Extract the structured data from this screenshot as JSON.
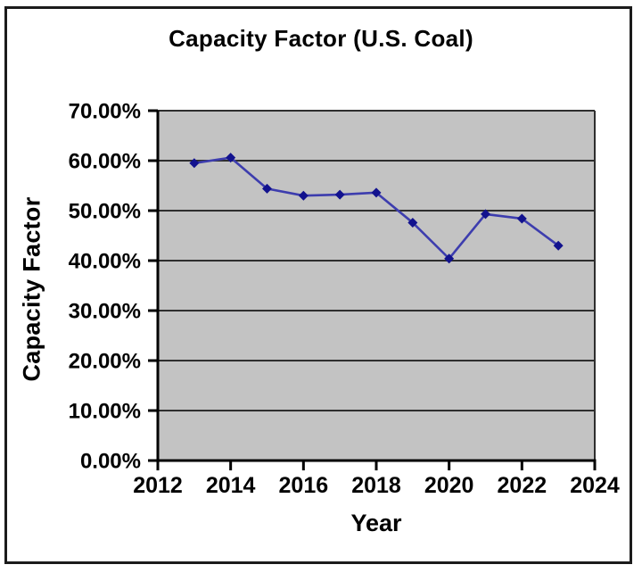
{
  "chart": {
    "title": "Capacity Factor (U.S. Coal)",
    "xlabel": "Year",
    "ylabel": "Capacity Factor"
  },
  "chart_data": {
    "type": "line",
    "title": "Capacity Factor (U.S. Coal)",
    "xlabel": "Year",
    "ylabel": "Capacity Factor",
    "x": [
      2013,
      2014,
      2015,
      2016,
      2017,
      2018,
      2019,
      2020,
      2021,
      2022,
      2023
    ],
    "values": [
      59.5,
      60.6,
      54.4,
      53.0,
      53.2,
      53.6,
      47.6,
      40.4,
      49.3,
      48.4,
      43.0
    ],
    "xlim": [
      2012,
      2024
    ],
    "ylim": [
      0,
      70
    ],
    "x_tick_values": [
      2012,
      2014,
      2016,
      2018,
      2020,
      2022,
      2024
    ],
    "x_tick_labels": [
      "2012",
      "2014",
      "2016",
      "2018",
      "2020",
      "2022",
      "2024"
    ],
    "y_tick_values": [
      70,
      60,
      50,
      40,
      30,
      20,
      10,
      0
    ],
    "y_tick_labels": [
      "70.00%",
      "60.00%",
      "50.00%",
      "40.00%",
      "30.00%",
      "20.00%",
      "10.00%",
      "0.00%"
    ],
    "grid": "horizontal",
    "legend": "none",
    "marker": "diamond"
  },
  "colors": {
    "plot_bg": "#c3c3c3",
    "grid": "#2e2e2e",
    "axis": "#000000",
    "series_line": "#3d3dae",
    "marker": "#12128e",
    "frame": "#1b1b1b",
    "text": "#000000"
  }
}
